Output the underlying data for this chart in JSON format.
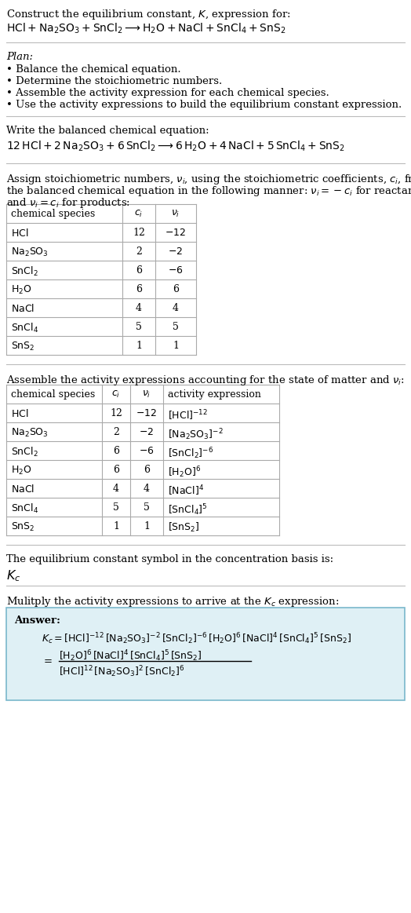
{
  "bg_color": "#ffffff",
  "title_line1": "Construct the equilibrium constant, $K$, expression for:",
  "title_line2": "$\\mathrm{HCl + Na_2SO_3 + SnCl_2 \\longrightarrow H_2O + NaCl + SnCl_4 + SnS_2}$",
  "plan_header": "Plan:",
  "plan_items": [
    "Balance the chemical equation.",
    "Determine the stoichiometric numbers.",
    "Assemble the activity expression for each chemical species.",
    "Use the activity expressions to build the equilibrium constant expression."
  ],
  "balanced_header": "Write the balanced chemical equation:",
  "balanced_eq": "$\\mathrm{12\\,HCl + 2\\,Na_2SO_3 + 6\\,SnCl_2 \\longrightarrow 6\\,H_2O + 4\\,NaCl + 5\\,SnCl_4 + SnS_2}$",
  "stoich_header1": "Assign stoichiometric numbers, $\\nu_i$, using the stoichiometric coefficients, $c_i$, from",
  "stoich_header2": "the balanced chemical equation in the following manner: $\\nu_i = -c_i$ for reactants",
  "stoich_header3": "and $\\nu_i = c_i$ for products:",
  "table1_headers": [
    "chemical species",
    "$c_i$",
    "$\\nu_i$"
  ],
  "table1_data": [
    [
      "$\\mathrm{HCl}$",
      "12",
      "$-12$"
    ],
    [
      "$\\mathrm{Na_2SO_3}$",
      "2",
      "$-2$"
    ],
    [
      "$\\mathrm{SnCl_2}$",
      "6",
      "$-6$"
    ],
    [
      "$\\mathrm{H_2O}$",
      "6",
      "6"
    ],
    [
      "$\\mathrm{NaCl}$",
      "4",
      "4"
    ],
    [
      "$\\mathrm{SnCl_4}$",
      "5",
      "5"
    ],
    [
      "$\\mathrm{SnS_2}$",
      "1",
      "1"
    ]
  ],
  "activity_header": "Assemble the activity expressions accounting for the state of matter and $\\nu_i$:",
  "table2_headers": [
    "chemical species",
    "$c_i$",
    "$\\nu_i$",
    "activity expression"
  ],
  "table2_data": [
    [
      "$\\mathrm{HCl}$",
      "12",
      "$-12$",
      "$[\\mathrm{HCl}]^{-12}$"
    ],
    [
      "$\\mathrm{Na_2SO_3}$",
      "2",
      "$-2$",
      "$[\\mathrm{Na_2SO_3}]^{-2}$"
    ],
    [
      "$\\mathrm{SnCl_2}$",
      "6",
      "$-6$",
      "$[\\mathrm{SnCl_2}]^{-6}$"
    ],
    [
      "$\\mathrm{H_2O}$",
      "6",
      "6",
      "$[\\mathrm{H_2O}]^{6}$"
    ],
    [
      "$\\mathrm{NaCl}$",
      "4",
      "4",
      "$[\\mathrm{NaCl}]^{4}$"
    ],
    [
      "$\\mathrm{SnCl_4}$",
      "5",
      "5",
      "$[\\mathrm{SnCl_4}]^{5}$"
    ],
    [
      "$\\mathrm{SnS_2}$",
      "1",
      "1",
      "$[\\mathrm{SnS_2}]$"
    ]
  ],
  "kc_header": "The equilibrium constant symbol in the concentration basis is:",
  "kc_symbol": "$K_c$",
  "multiply_header": "Mulitply the activity expressions to arrive at the $K_c$ expression:",
  "answer_label": "Answer:",
  "answer_line1": "$K_c = [\\mathrm{HCl}]^{-12}\\,[\\mathrm{Na_2SO_3}]^{-2}\\,[\\mathrm{SnCl_2}]^{-6}\\,[\\mathrm{H_2O}]^{6}\\,[\\mathrm{NaCl}]^{4}\\,[\\mathrm{SnCl_4}]^{5}\\,[\\mathrm{SnS_2}]$",
  "answer_eq": "$= $",
  "answer_num": "$[\\mathrm{H_2O}]^{6}\\,[\\mathrm{NaCl}]^{4}\\,[\\mathrm{SnCl_4}]^{5}\\,[\\mathrm{SnS_2}]$",
  "answer_den": "$[\\mathrm{HCl}]^{12}\\,[\\mathrm{Na_2SO_3}]^{2}\\,[\\mathrm{SnCl_2}]^{6}$",
  "answer_box_color": "#dff0f5",
  "answer_box_border": "#7ab8cc",
  "table_border_color": "#aaaaaa",
  "hline_color": "#bbbbbb",
  "fs": 9.5,
  "fs_table": 9.0
}
